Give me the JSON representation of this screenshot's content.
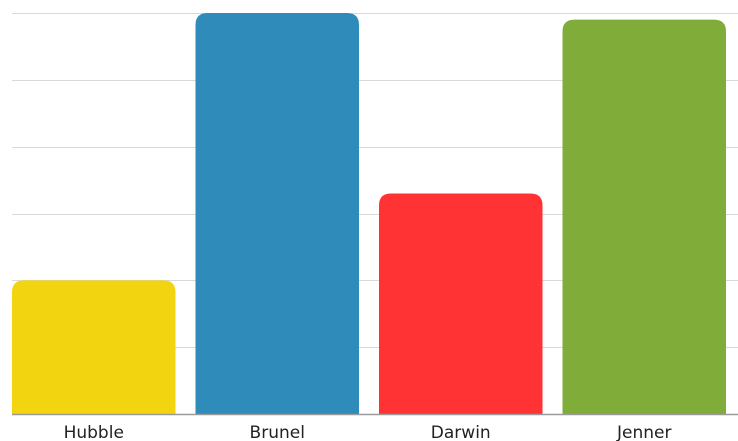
{
  "chart_data": {
    "type": "bar",
    "categories": [
      "Hubble",
      "Brunel",
      "Darwin",
      "Jenner"
    ],
    "values": [
      20,
      60,
      33,
      59
    ],
    "colors": [
      "#f2d411",
      "#2e8bba",
      "#ff3333",
      "#80ad3a"
    ],
    "ylim": [
      0,
      60
    ],
    "grid": true,
    "title": "",
    "xlabel": "",
    "ylabel": ""
  }
}
